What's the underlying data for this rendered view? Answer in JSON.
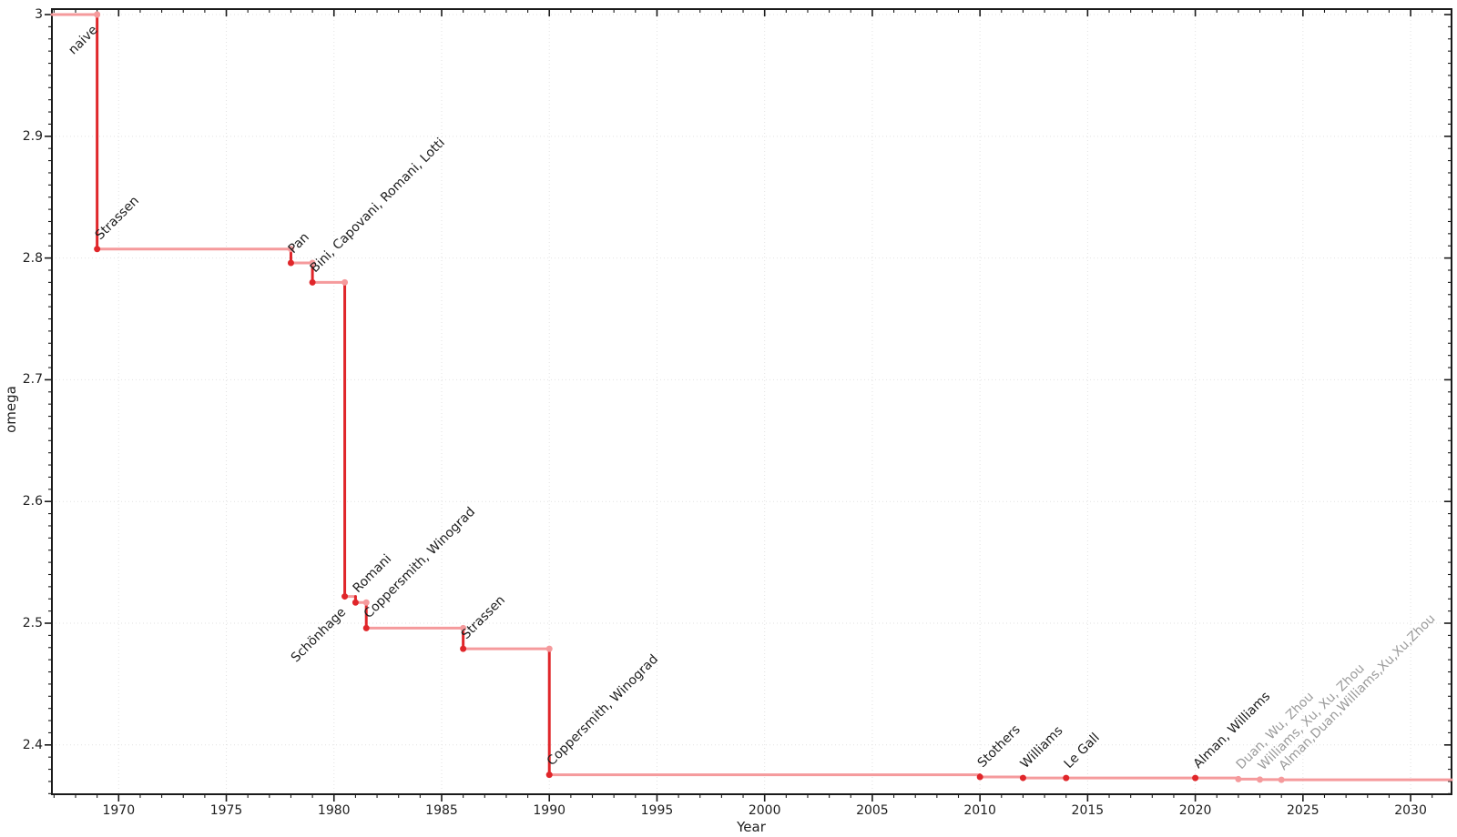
{
  "chart_data": {
    "type": "line",
    "subtype": "step",
    "title": "",
    "xlabel": "Year",
    "ylabel": "omega",
    "xlim": [
      1966.9,
      2031.9
    ],
    "ylim": [
      2.3595,
      3.0045
    ],
    "x_major_ticks": [
      1970,
      1975,
      1980,
      1985,
      1990,
      1995,
      2000,
      2005,
      2010,
      2015,
      2020,
      2025,
      2030
    ],
    "x_major_tick_labels": [
      "1970",
      "1975",
      "1980",
      "1985",
      "1990",
      "1995",
      "2000",
      "2005",
      "2010",
      "2015",
      "2020",
      "2025",
      "2030"
    ],
    "x_minor_step": 1,
    "y_major_ticks": [
      3,
      2.9,
      2.8,
      2.7,
      2.6,
      2.5,
      2.4
    ],
    "y_major_tick_labels": [
      "3",
      "2.9",
      "2.8",
      "2.7",
      "2.6",
      "2.5",
      "2.4"
    ],
    "y_minor_step": 0.01,
    "grid": {
      "show": true,
      "style": "dotted",
      "at": "major-ticks"
    },
    "legend": "none",
    "colors": {
      "line_dark": "#e0262a",
      "line_light": "#f59a9c",
      "point_dark": "#e0262a",
      "point_light": "#f59a9c",
      "label_dark": "#1c1c1c",
      "label_gray": "#9b9b9b",
      "axis": "#1a1a1a",
      "grid": "#e2e2e2",
      "background": "#ffffff"
    },
    "points": [
      {
        "year": 1969,
        "omega": 3.0,
        "label": "naive",
        "point_color": "light",
        "label_color": "dark",
        "label_anchor": "below"
      },
      {
        "year": 1969,
        "omega": 2.8074,
        "label": "Strassen",
        "point_color": "dark",
        "label_color": "dark",
        "label_anchor": "above"
      },
      {
        "year": 1978,
        "omega": 2.796,
        "label": "Pan",
        "point_color": "dark",
        "label_color": "dark",
        "label_anchor": "above"
      },
      {
        "year": 1979,
        "omega": 2.78,
        "label": "Bini, Capovani, Romani, Lotti",
        "point_color": "dark",
        "label_color": "dark",
        "label_anchor": "above"
      },
      {
        "year": 1980.5,
        "omega": 2.522,
        "label": "Schönhage",
        "point_color": "dark",
        "label_color": "dark",
        "label_anchor": "below"
      },
      {
        "year": 1981,
        "omega": 2.517,
        "label": "Romani",
        "point_color": "dark",
        "label_color": "dark",
        "label_anchor": "above"
      },
      {
        "year": 1981.5,
        "omega": 2.496,
        "label": "Coppersmith, Winograd",
        "point_color": "dark",
        "label_color": "dark",
        "label_anchor": "above"
      },
      {
        "year": 1986,
        "omega": 2.479,
        "label": "Strassen",
        "point_color": "dark",
        "label_color": "dark",
        "label_anchor": "above"
      },
      {
        "year": 1990,
        "omega": 2.3755,
        "label": "Coppersmith, Winograd",
        "point_color": "dark",
        "label_color": "dark",
        "label_anchor": "above"
      },
      {
        "year": 2010,
        "omega": 2.3737,
        "label": "Stothers",
        "point_color": "dark",
        "label_color": "dark",
        "label_anchor": "above"
      },
      {
        "year": 2012,
        "omega": 2.3729,
        "label": "Williams",
        "point_color": "dark",
        "label_color": "dark",
        "label_anchor": "above"
      },
      {
        "year": 2014,
        "omega": 2.37287,
        "label": "Le Gall",
        "point_color": "dark",
        "label_color": "dark",
        "label_anchor": "above"
      },
      {
        "year": 2020,
        "omega": 2.37286,
        "label": "Alman, Williams",
        "point_color": "dark",
        "label_color": "dark",
        "label_anchor": "above"
      },
      {
        "year": 2022,
        "omega": 2.37188,
        "label": "Duan, Wu, Zhou",
        "point_color": "light",
        "label_color": "gray",
        "label_anchor": "above"
      },
      {
        "year": 2023,
        "omega": 2.371552,
        "label": "Williams, Xu, Xu, Zhou",
        "point_color": "light",
        "label_color": "gray",
        "label_anchor": "above"
      },
      {
        "year": 2024,
        "omega": 2.371339,
        "label": "Alman,Duan,Williams,Xu,Xu,Zhou",
        "point_color": "light",
        "label_color": "gray",
        "label_anchor": "above"
      }
    ]
  }
}
